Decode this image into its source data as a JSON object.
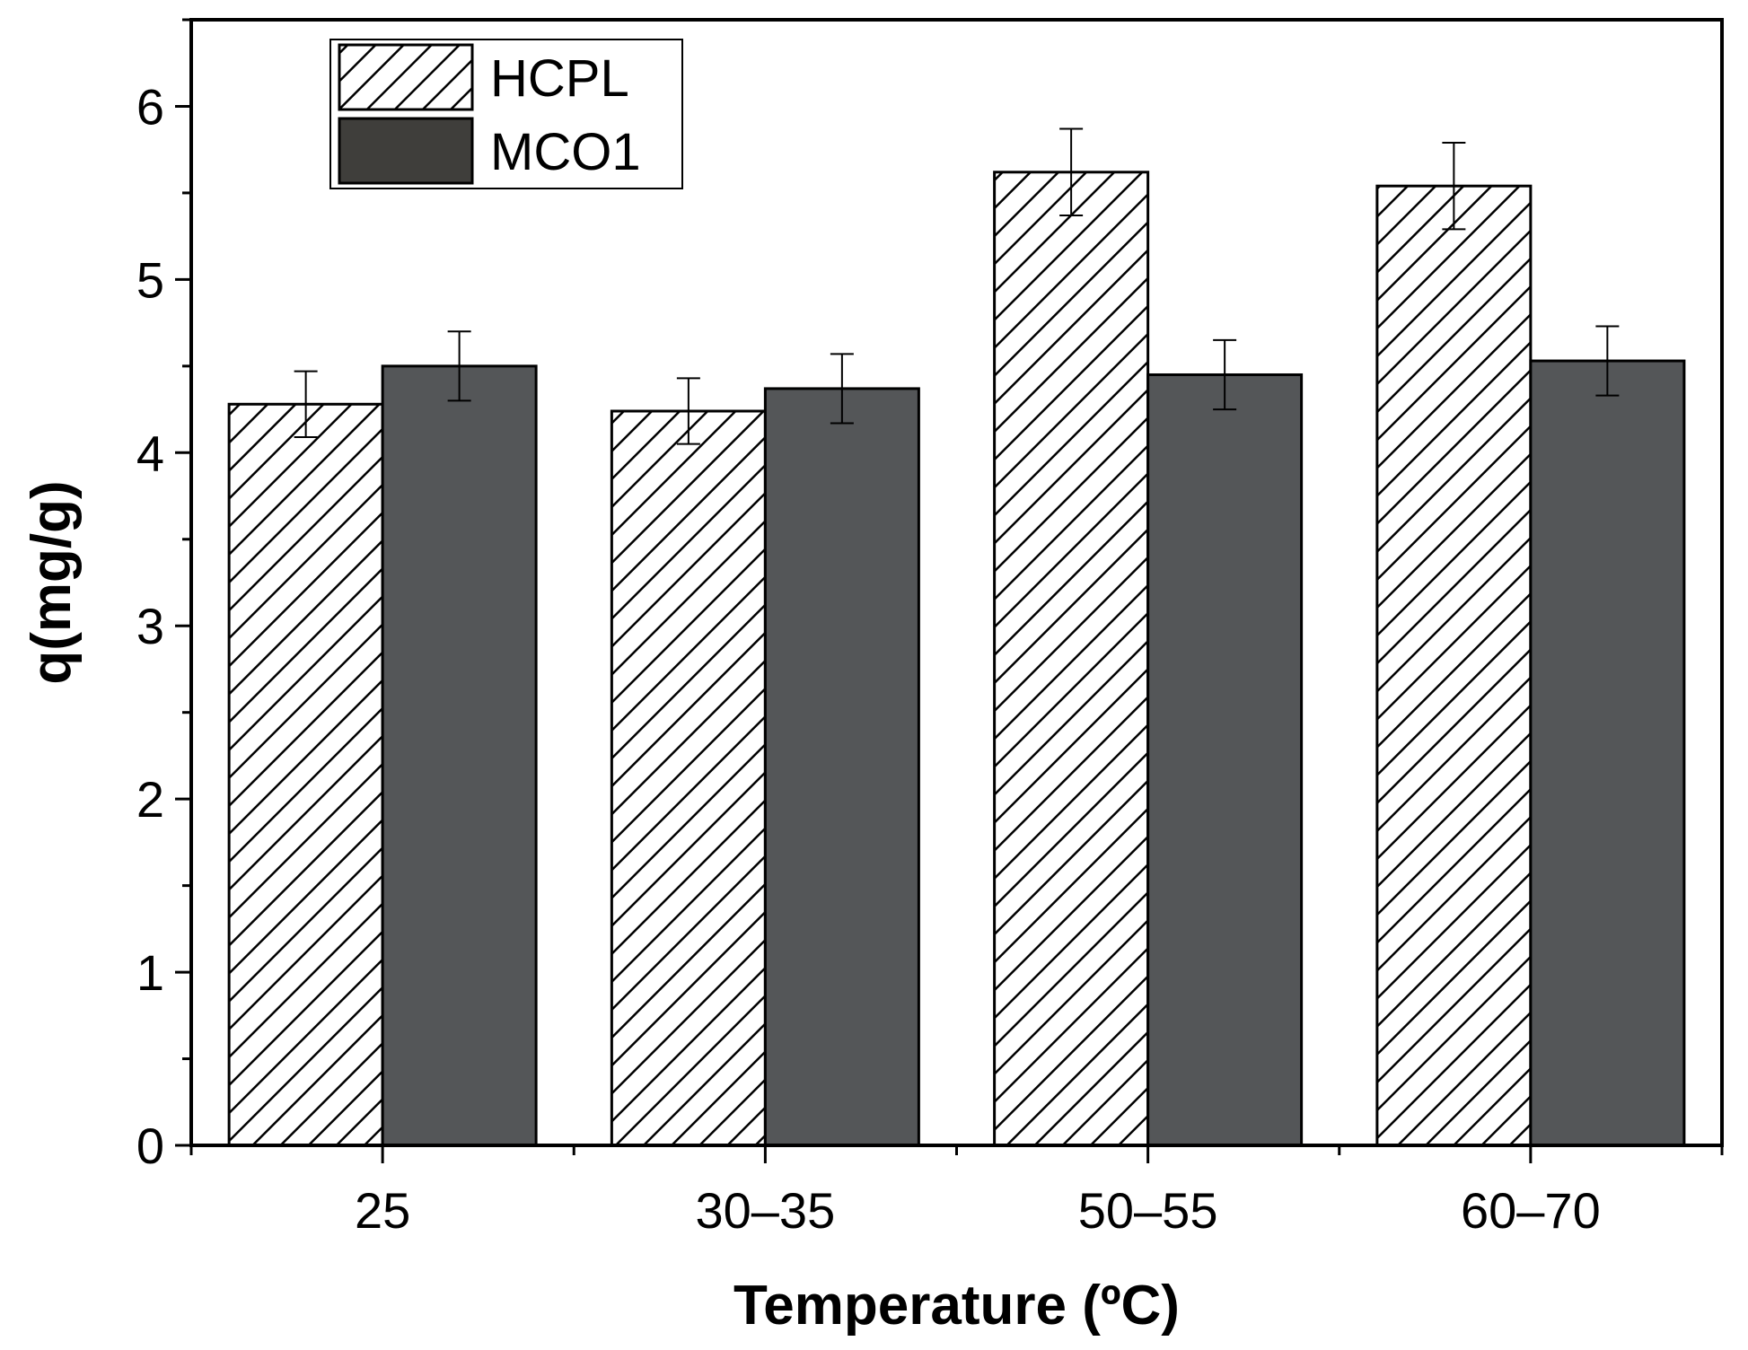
{
  "chart_data": {
    "type": "bar",
    "title": "",
    "xlabel": "Temperature (ºC)",
    "ylabel": "q(mg/g)",
    "categories": [
      "25",
      "30–35",
      "50–55",
      "60–70"
    ],
    "ylim": [
      0,
      6.5
    ],
    "yticks": [
      0,
      1,
      2,
      3,
      4,
      5,
      6
    ],
    "ytick_labels": [
      "0",
      "1",
      "2",
      "3",
      "4",
      "5",
      "6"
    ],
    "grid": false,
    "legend_position": "top-left",
    "series": [
      {
        "name": "HCPL",
        "pattern": "hatch",
        "values": [
          4.28,
          4.24,
          5.62,
          5.54
        ],
        "errors": [
          0.19,
          0.19,
          0.25,
          0.25
        ]
      },
      {
        "name": "MCO1",
        "pattern": "solid",
        "values": [
          4.5,
          4.37,
          4.45,
          4.53
        ],
        "errors": [
          0.2,
          0.2,
          0.2,
          0.2
        ]
      }
    ],
    "colors": {
      "solid_fill": "#545658",
      "legend_solid_fill": "#3f3e3b",
      "hatch_stroke": "#000000",
      "axis": "#000000"
    }
  }
}
